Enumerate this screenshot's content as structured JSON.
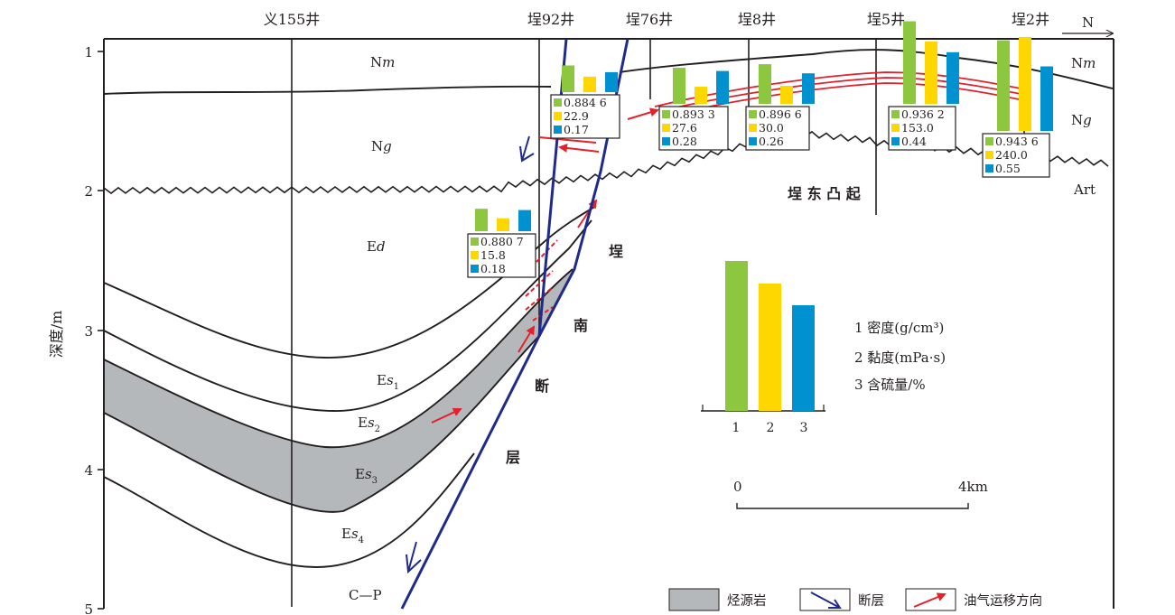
{
  "y_axis": {
    "title": "深度/m",
    "ticks": [
      "1",
      "2",
      "3",
      "4",
      "5"
    ]
  },
  "north_label": "N",
  "wells": [
    "义155井",
    "埕92井",
    "埕76井",
    "埕8井",
    "埕5井",
    "埕2井"
  ],
  "strata": {
    "Nm_left": {
      "main": "N",
      "ital": "m"
    },
    "Nm_right": {
      "main": "N",
      "ital": "m"
    },
    "Ng_left": {
      "main": "N",
      "ital": "g"
    },
    "Ng_right": {
      "main": "N",
      "ital": "g"
    },
    "Ed": {
      "main": "E",
      "ital": "d"
    },
    "Es1": {
      "main": "E",
      "ital": "s",
      "sub": "1"
    },
    "Es2": {
      "main": "E",
      "ital": "s",
      "sub": "2"
    },
    "Es3": {
      "main": "E",
      "ital": "s",
      "sub": "3"
    },
    "Es4": {
      "main": "E",
      "ital": "s",
      "sub": "4"
    },
    "Art": "Art",
    "CP": "C—P"
  },
  "structure_labels": {
    "uplift": "埕 东 凸 起",
    "fault_chars": [
      "埕",
      "南",
      "断",
      "层"
    ]
  },
  "well_data": [
    {
      "well": "义155井",
      "values": [
        "0.880 7",
        "15.8",
        "0.18"
      ]
    },
    {
      "well": "埕92井",
      "values": [
        "0.884 6",
        "22.9",
        "0.17"
      ]
    },
    {
      "well": "埕76井",
      "values": [
        "0.893 3",
        "27.6",
        "0.28"
      ]
    },
    {
      "well": "埕8井",
      "values": [
        "0.896 6",
        "30.0",
        "0.26"
      ]
    },
    {
      "well": "埕5井",
      "values": [
        "0.936 2",
        "153.0",
        "0.44"
      ]
    },
    {
      "well": "埕2井",
      "values": [
        "0.943 6",
        "240.0",
        "0.55"
      ]
    }
  ],
  "bar_legend": {
    "categories": [
      "1",
      "2",
      "3"
    ],
    "items": [
      "1 密度(g/cm³)",
      "2 黏度(mPa·s)",
      "3 含硫量/%"
    ]
  },
  "scale_bar": {
    "start": "0",
    "end": "4km"
  },
  "legend": [
    "烃源岩",
    "断层",
    "油气运移方向"
  ],
  "colors": {
    "density": "#8dc63f",
    "viscosity": "#ffd700",
    "sulfur": "#0092d0",
    "source_rock": "#b5b8bb",
    "fault": "#1f2a8c",
    "migration": "#e4202a",
    "line": "#231f20"
  }
}
